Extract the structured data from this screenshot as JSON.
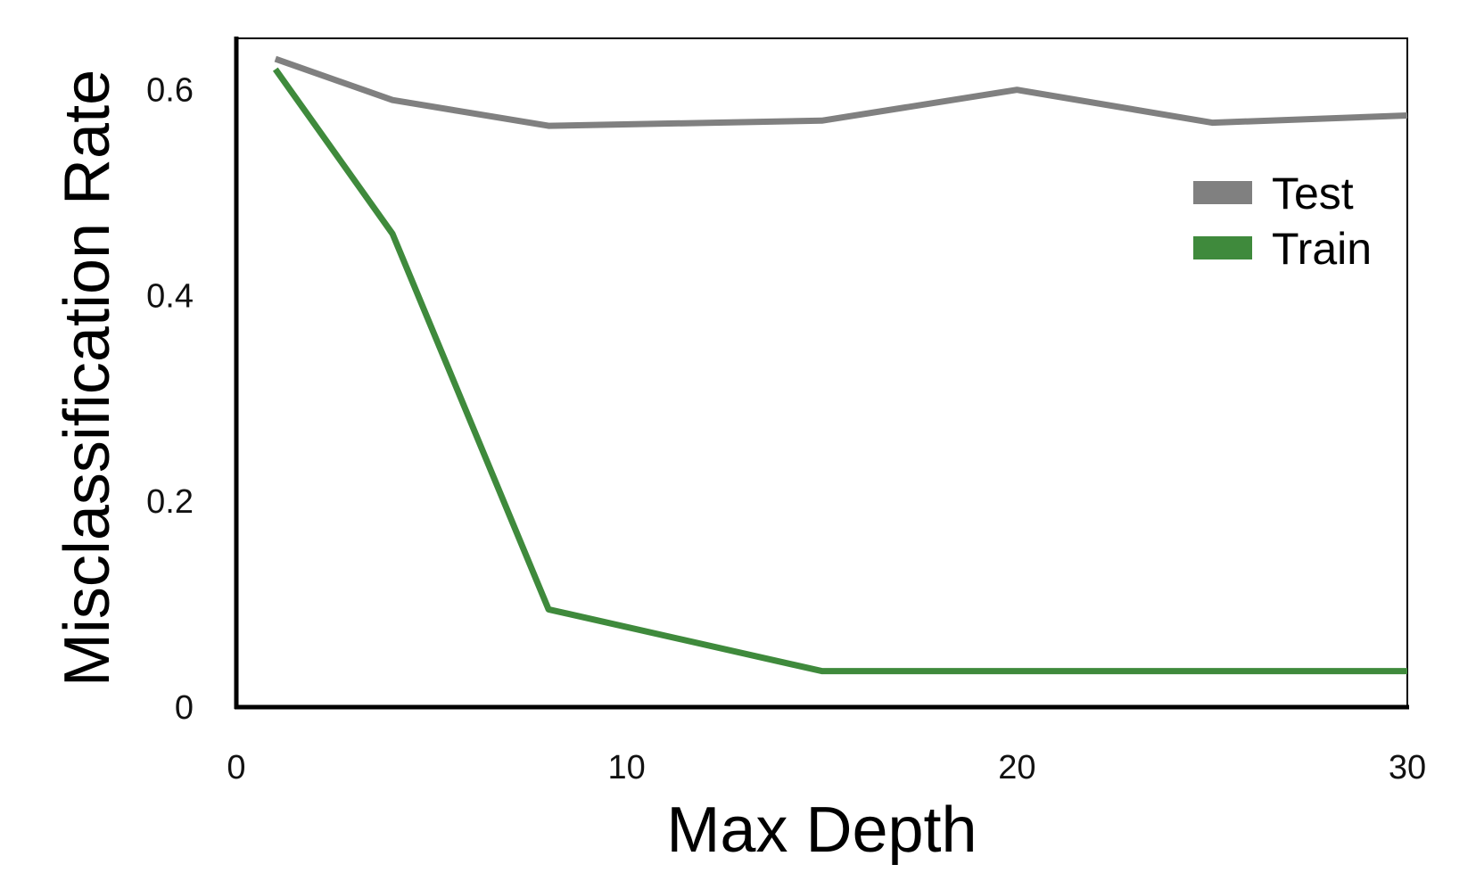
{
  "chart_data": {
    "type": "line",
    "title": "",
    "xlabel": "Max Depth",
    "ylabel": "Misclassification Rate",
    "xlim": [
      0,
      30
    ],
    "ylim": [
      0,
      0.65
    ],
    "xticks": [
      0,
      10,
      20,
      30
    ],
    "xtick_labels": [
      "0",
      "10",
      "20",
      "30"
    ],
    "yticks": [
      0,
      0.2,
      0.4,
      0.6
    ],
    "ytick_labels": [
      "0",
      "0.2",
      "0.4",
      "0.6"
    ],
    "grid": false,
    "legend_position": "top-right",
    "series": [
      {
        "name": "Test",
        "color": "#808080",
        "x": [
          1,
          4,
          8,
          15,
          20,
          25,
          30
        ],
        "y": [
          0.63,
          0.59,
          0.565,
          0.57,
          0.6,
          0.568,
          0.575
        ]
      },
      {
        "name": "Train",
        "color": "#3f8a3c",
        "x": [
          1,
          4,
          8,
          15,
          20,
          25,
          30
        ],
        "y": [
          0.62,
          0.46,
          0.095,
          0.035,
          0.035,
          0.035,
          0.035
        ]
      }
    ]
  }
}
